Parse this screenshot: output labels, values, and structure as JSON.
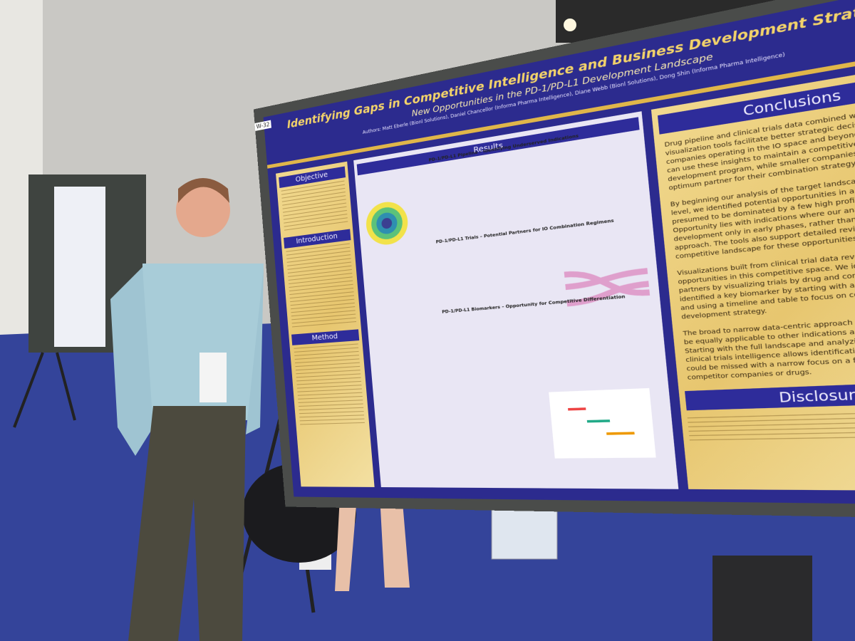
{
  "poster": {
    "board_number": "W-32",
    "title": "Identifying Gaps in Competitive Intelligence and Business Development Strategy:",
    "subtitle": "New Opportunities in the PD-1/PD-L1 Development Landscape",
    "authors": "Authors: Matt Eberle (Bionl Solutions), Daniel Chancellor (Informa Pharma Intelligence), Diane Webb (Bionl Solutions), Dong Shin (Informa Pharma Intelligence)",
    "sections": {
      "objective": "Objective",
      "introduction": "Introduction",
      "method": "Method",
      "results": "Results",
      "conclusions": "Conclusions",
      "disclosure": "Disclosure"
    },
    "results_headings": [
      "PD-1/PD-L1 Pipeline – Identifying Underserved Indications",
      "PD-1/PD-L1 Trials – Potential Partners for IO Combination Regimens",
      "PD-1/PD-L1 Biomarkers – Opportunity for Competitive Differentiation"
    ],
    "conclusions": [
      "Drug pipeline and clinical trials data combined with analysis and visualization tools facilitate better strategic decisions for companies operating in the IO space and beyond. PD-1 developers can use these insights to maintain a competitive and differentiated development program, while smaller companies can find the optimum partner for their combination strategy.",
      "By beginning our analysis of the target landscape at the drug level, we identified potential opportunities in a landscape presumed to be dominated by a few high profile drugs. Opportunity lies with indications where our analysis shows development only in early phases, rather than the \"me-too\" approach. The tools also support detailed review of the competitive landscape for these opportunities.",
      "Visualizations built from clinical trial data reveal additional opportunities in this competitive space. We identified potential partners by visualizing trials by drug and combination. And, we identified a key biomarker by starting with a broad visualization and using a timeline and table to focus on competitors development strategy.",
      "The broad to narrow data-centric approach employed here should be equally applicable to other indications and therapeutic areas. Starting with the full landscape and analyzing both drug and clinical trials intelligence allows identification of opportunities that could be missed with a narrow focus on a few well-known competitor companies or drugs."
    ]
  }
}
